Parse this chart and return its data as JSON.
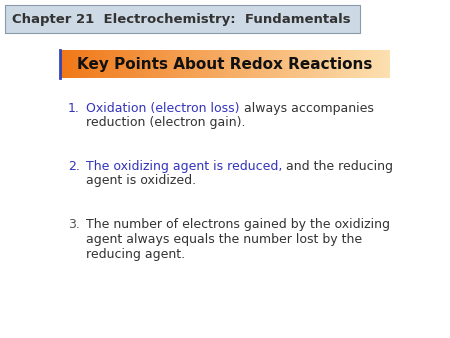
{
  "title": "Chapter 21  Electrochemistry:  Fundamentals",
  "title_bg": "#cdd9e5",
  "title_border": "#8899aa",
  "heading": "Key Points About Redox Reactions",
  "heading_color": "#111111",
  "item1_blue": "Oxidation (electron loss)",
  "item1_black": " always accompanies\nreduction (electron gain).",
  "item2_blue": "The oxidizing agent is reduced,",
  "item2_black": " and the reducing\nagent is oxidized.",
  "item3": "The number of electrons gained by the oxidizing\nagent always equals the number lost by the\nreducing agent.",
  "blue_color": "#3333bb",
  "black_color": "#333333",
  "bg_color": "#ffffff",
  "num12_color": "#3333bb",
  "num3_color": "#555555",
  "orange_start": "#f07818",
  "orange_end": "#fce0b0"
}
